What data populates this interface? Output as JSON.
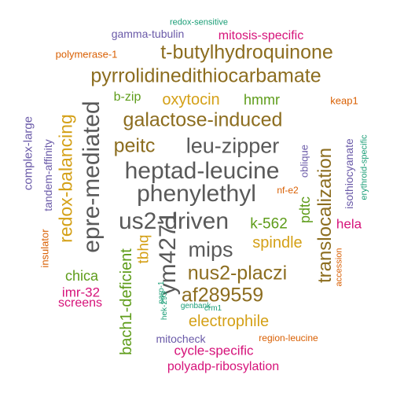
{
  "palette": {
    "gray": "#595959",
    "brown": "#8c6d1f",
    "gold": "#d4a017",
    "green": "#5e9c1a",
    "magenta": "#d6137a",
    "purple": "#6a5aa8",
    "orange": "#d95f02",
    "teal": "#1b9e77"
  },
  "words": [
    {
      "text": "heptad-leucine",
      "color": "gray",
      "rot": 0
    },
    {
      "text": "phenylethyl",
      "color": "gray",
      "rot": 0
    },
    {
      "text": "us2-driven",
      "color": "gray",
      "rot": 0
    },
    {
      "text": "epre-mediated",
      "color": "gray",
      "rot": 90
    },
    {
      "text": "ym4271",
      "color": "gray",
      "rot": 90
    },
    {
      "text": "leu-zipper",
      "color": "gray",
      "rot": 0
    },
    {
      "text": "mips",
      "color": "gray",
      "rot": 0
    },
    {
      "text": "galactose-induced",
      "color": "brown",
      "rot": 0
    },
    {
      "text": "pyrrolidinedithiocarbamate",
      "color": "brown",
      "rot": 0
    },
    {
      "text": "t-butylhydroquinone",
      "color": "brown",
      "rot": 0
    },
    {
      "text": "nus2-placzi",
      "color": "brown",
      "rot": 0
    },
    {
      "text": "af289559",
      "color": "brown",
      "rot": 0
    },
    {
      "text": "peitc",
      "color": "brown",
      "rot": 0
    },
    {
      "text": "translocalization",
      "color": "brown",
      "rot": 90
    },
    {
      "text": "redox-balancing",
      "color": "gold",
      "rot": 90
    },
    {
      "text": "oxytocin",
      "color": "gold",
      "rot": 0
    },
    {
      "text": "spindle",
      "color": "gold",
      "rot": 0
    },
    {
      "text": "electrophile",
      "color": "gold",
      "rot": 0
    },
    {
      "text": "tbhq",
      "color": "gold",
      "rot": 90
    },
    {
      "text": "k-562",
      "color": "green",
      "rot": 0
    },
    {
      "text": "chica",
      "color": "green",
      "rot": 0
    },
    {
      "text": "hmmr",
      "color": "green",
      "rot": 0
    },
    {
      "text": "b-zip",
      "color": "green",
      "rot": 0
    },
    {
      "text": "pdtc",
      "color": "green",
      "rot": 90
    },
    {
      "text": "bach1-deficient",
      "color": "green",
      "rot": 90
    },
    {
      "text": "mitosis-specific",
      "color": "magenta",
      "rot": 0
    },
    {
      "text": "imr-32",
      "color": "magenta",
      "rot": 0
    },
    {
      "text": "screens",
      "color": "magenta",
      "rot": 0
    },
    {
      "text": "hela",
      "color": "magenta",
      "rot": 0
    },
    {
      "text": "cycle-specific",
      "color": "magenta",
      "rot": 0
    },
    {
      "text": "polyadp-ribosylation",
      "color": "magenta",
      "rot": 0
    },
    {
      "text": "gamma-tubulin",
      "color": "purple",
      "rot": 0
    },
    {
      "text": "complex-large",
      "color": "purple",
      "rot": 90
    },
    {
      "text": "tandem-affinity",
      "color": "purple",
      "rot": 90
    },
    {
      "text": "isothiocyanate",
      "color": "purple",
      "rot": 90
    },
    {
      "text": "oblique",
      "color": "purple",
      "rot": 90
    },
    {
      "text": "mitocheck",
      "color": "purple",
      "rot": 0
    },
    {
      "text": "polymerase-1",
      "color": "orange",
      "rot": 0
    },
    {
      "text": "keap1",
      "color": "orange",
      "rot": 0
    },
    {
      "text": "nf-e2",
      "color": "orange",
      "rot": 0
    },
    {
      "text": "insulator",
      "color": "orange",
      "rot": 90
    },
    {
      "text": "accession",
      "color": "orange",
      "rot": 90
    },
    {
      "text": "region-leucine",
      "color": "orange",
      "rot": 0
    },
    {
      "text": "redox-sensitive",
      "color": "teal",
      "rot": 0
    },
    {
      "text": "erythroid-specific",
      "color": "teal",
      "rot": 90
    },
    {
      "text": "parp-1",
      "color": "teal",
      "rot": 90
    },
    {
      "text": "hek-293",
      "color": "teal",
      "rot": 90
    },
    {
      "text": "genbank",
      "color": "teal",
      "rot": 0
    },
    {
      "text": "crm1",
      "color": "teal",
      "rot": 0
    }
  ]
}
